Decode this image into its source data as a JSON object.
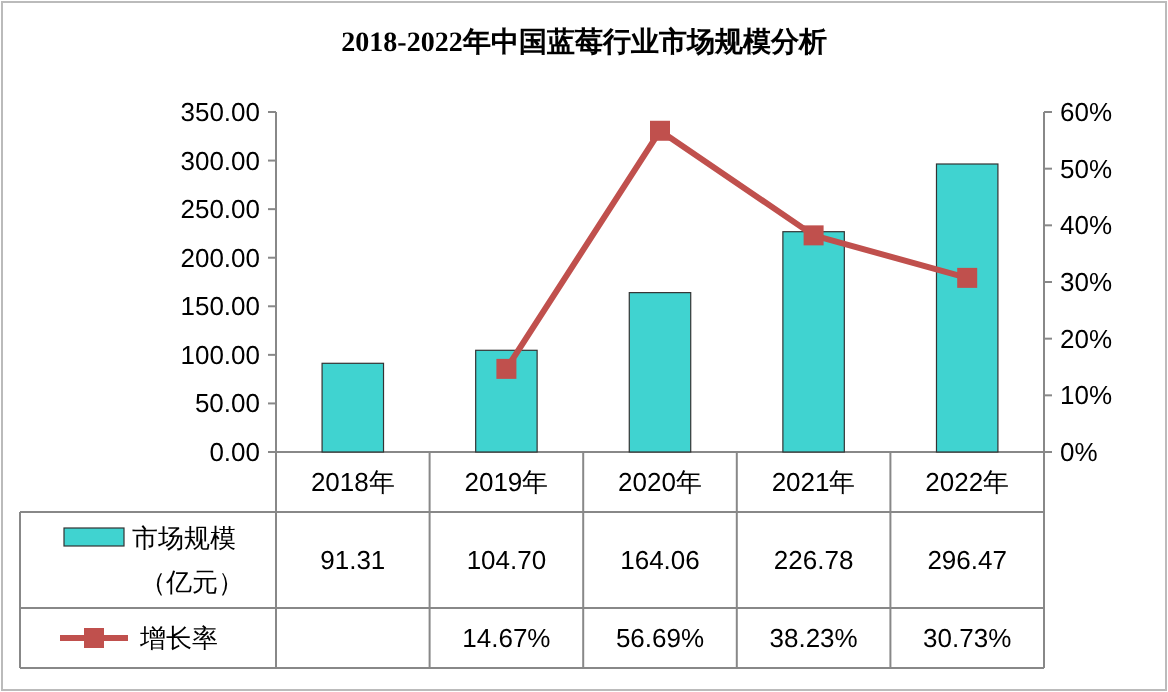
{
  "chart_data": {
    "type": "bar",
    "title": "2018-2022年中国蓝莓行业市场规模分析",
    "categories": [
      "2018年",
      "2019年",
      "2020年",
      "2021年",
      "2022年"
    ],
    "series": [
      {
        "name": "市场规模（亿元）",
        "color": "#40d3d0",
        "values": [
          91.31,
          104.7,
          164.06,
          226.78,
          296.47
        ],
        "value_labels": [
          "91.31",
          "104.70",
          "164.06",
          "226.78",
          "296.47"
        ]
      },
      {
        "name": "增长率",
        "type": "line",
        "axis": "y2",
        "color": "#c0504d",
        "marker": "square",
        "values": [
          null,
          14.67,
          56.69,
          38.23,
          30.73
        ],
        "value_labels": [
          null,
          "14.67%",
          "56.69%",
          "38.23%",
          "30.73%"
        ]
      }
    ],
    "ylim": [
      0,
      350
    ],
    "yticks": [
      {
        "value": 0,
        "label": "0.00"
      },
      {
        "value": 50,
        "label": "50.00"
      },
      {
        "value": 100,
        "label": "100.00"
      },
      {
        "value": 150,
        "label": "150.00"
      },
      {
        "value": 200,
        "label": "200.00"
      },
      {
        "value": 250,
        "label": "250.00"
      },
      {
        "value": 300,
        "label": "300.00"
      },
      {
        "value": 350,
        "label": "350.00"
      }
    ],
    "y2lim": [
      0,
      60
    ],
    "y2ticks": [
      {
        "value": 0,
        "label": "0%"
      },
      {
        "value": 10,
        "label": "10%"
      },
      {
        "value": 20,
        "label": "20%"
      },
      {
        "value": 30,
        "label": "30%"
      },
      {
        "value": 40,
        "label": "40%"
      },
      {
        "value": 50,
        "label": "50%"
      },
      {
        "value": 60,
        "label": "60%"
      }
    ],
    "grid": false,
    "legend": "bottom"
  }
}
